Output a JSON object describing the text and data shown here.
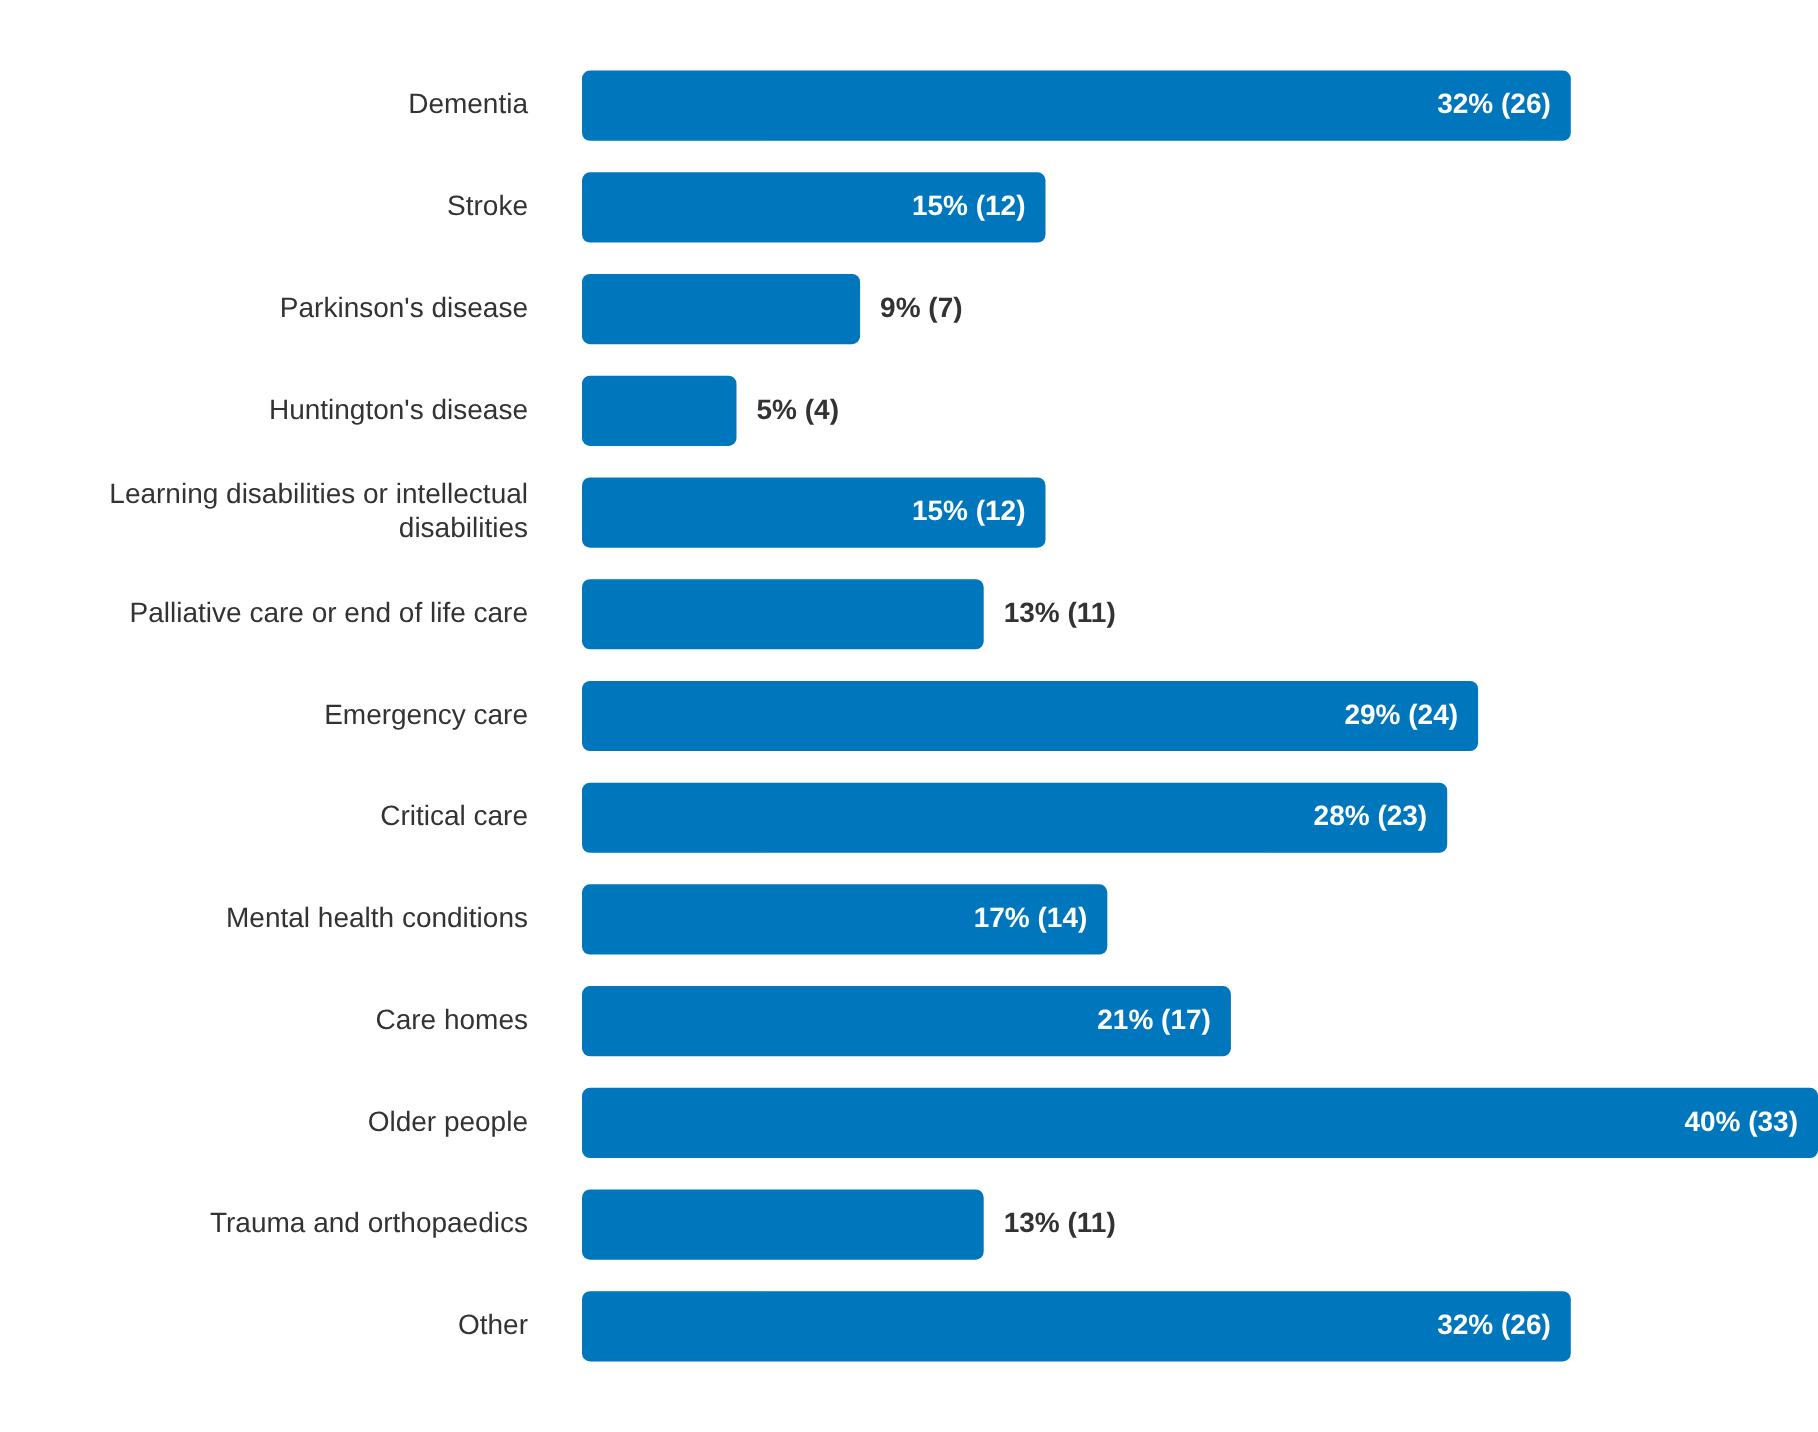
{
  "chart_data": {
    "type": "bar",
    "orientation": "horizontal",
    "categories": [
      "Dementia",
      "Stroke",
      "Parkinson's disease",
      "Huntington's disease",
      "Learning disabilities or intellectual disabilities",
      "Palliative care or end of life care",
      "Emergency care",
      "Critical care",
      "Mental health conditions",
      "Care homes",
      "Older people",
      "Trauma and orthopaedics",
      "Other"
    ],
    "values": [
      32,
      15,
      9,
      5,
      15,
      13,
      29,
      28,
      17,
      21,
      40,
      13,
      32
    ],
    "value_labels": [
      "32% (26)",
      "15% (12)",
      "9% (7)",
      "5% (4)",
      "15% (12)",
      "13% (11)",
      "29% (24)",
      "28% (23)",
      "17% (14)",
      "21% (17)",
      "40% (33)",
      "13% (11)",
      "32% (26)"
    ],
    "color": "#0077bd",
    "xlim": [
      0,
      40
    ],
    "tick_labels": "y",
    "legend": false
  }
}
